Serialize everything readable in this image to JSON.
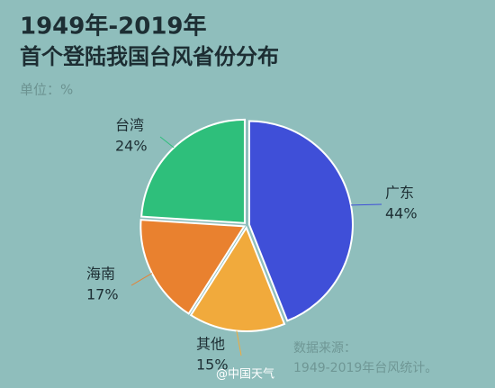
{
  "chart_data": {
    "type": "pie",
    "title": "1949年-2019年",
    "subtitle": "首个登陆我国台风省份分布",
    "unit_label": "单位：%",
    "categories": [
      "广东",
      "其他",
      "海南",
      "台湾"
    ],
    "values": [
      44,
      15,
      17,
      24
    ],
    "value_labels": [
      "44%",
      "15%",
      "17%",
      "24%"
    ],
    "colors": [
      "#3f4fd8",
      "#f1aa3c",
      "#e9812f",
      "#2ebf7b"
    ],
    "source": [
      "数据来源：",
      "1949-2019年台风统计。"
    ],
    "watermark": "@中国天气"
  }
}
